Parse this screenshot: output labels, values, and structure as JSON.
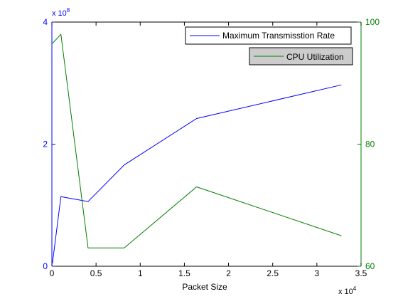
{
  "chart_data": {
    "type": "line",
    "xlabel": "Packet Size",
    "x_exponent_label": "x 10",
    "x_exponent_power": "4",
    "x_ticks": [
      "0",
      "0.5",
      "1",
      "1.5",
      "2",
      "2.5",
      "3",
      "3.5"
    ],
    "xlim": [
      0,
      35000
    ],
    "left_axis": {
      "ylim": [
        0,
        400000000
      ],
      "ticks": [
        "0",
        "2",
        "4"
      ],
      "exponent_label": "x 10",
      "exponent_power": "8",
      "color": "#0000ff"
    },
    "right_axis": {
      "ylim": [
        60,
        100
      ],
      "ticks": [
        "60",
        "80",
        "100"
      ],
      "color": "#007f00"
    },
    "grid": false,
    "series": [
      {
        "name": "Maximum Transmisstion Rate",
        "axis": "left",
        "color": "#0000ff",
        "x": [
          64,
          1024,
          4096,
          8192,
          16384,
          32768
        ],
        "y": [
          5000000,
          114000000,
          106000000,
          166000000,
          242000000,
          297000000
        ]
      },
      {
        "name": "CPU Utilization",
        "axis": "right",
        "color": "#007f00",
        "x": [
          64,
          1024,
          4096,
          8192,
          16384,
          32768
        ],
        "y": [
          96.5,
          98.0,
          63.0,
          63.0,
          73.0,
          65.0
        ]
      }
    ],
    "legends": [
      {
        "series": 0,
        "placement": "top-right",
        "background": "#ffffff"
      },
      {
        "series": 1,
        "placement": "top-right-below",
        "background": "#cccccc"
      }
    ]
  }
}
